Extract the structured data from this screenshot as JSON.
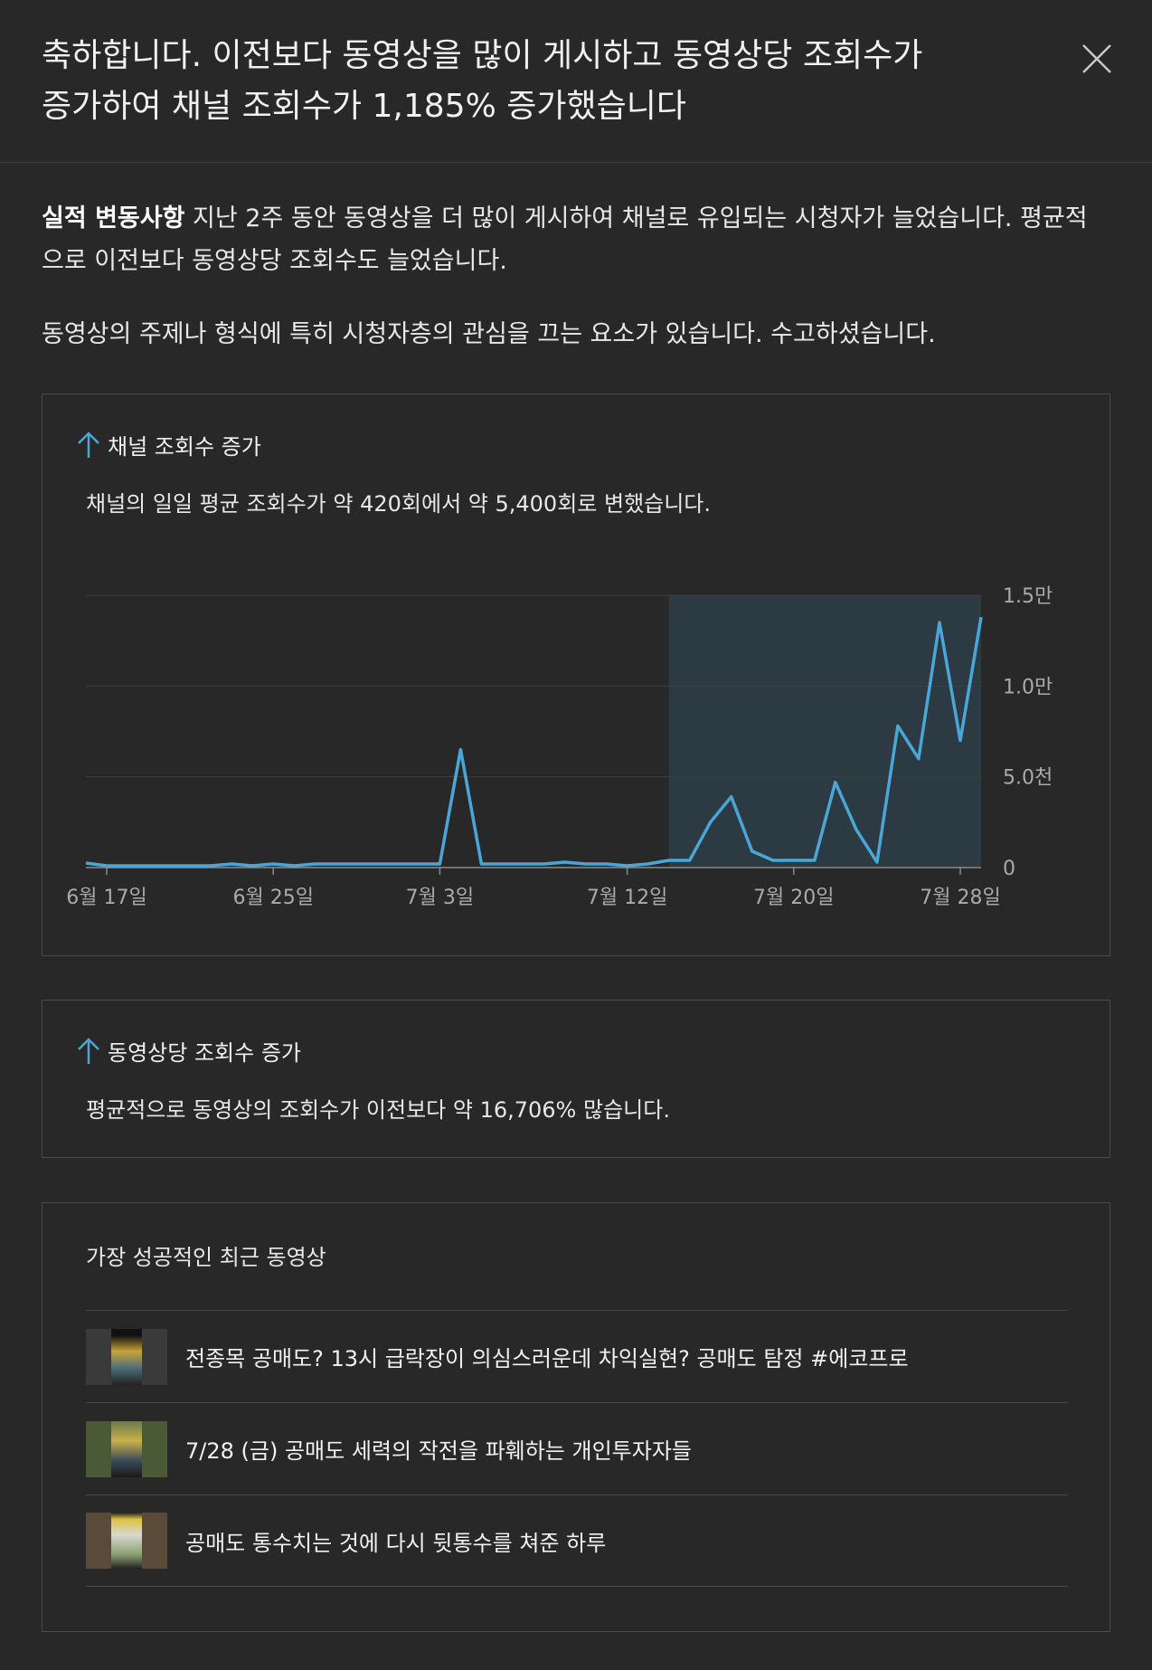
{
  "header": {
    "title_line1": "축하합니다. 이전보다 동영상을 많이 게시하고 동영상당 조회수가",
    "title_line2": "증가하여 채널 조회수가 1,185% 증가했습니다"
  },
  "summary": {
    "bold_label": "실적 변동사항",
    "text": " 지난 2주 동안 동영상을 더 많이 게시하여 채널로 유입되는 시청자가 늘었습니다. 평균적으로 이전보다 동영상당 조회수도 늘었습니다.",
    "text2": "동영상의 주제나 형식에 특히 시청자층의 관심을 끄는 요소가 있습니다. 수고하셨습니다."
  },
  "channel_views_card": {
    "heading": "채널 조회수 증가",
    "description": "채널의 일일 평균 조회수가 약 420회에서 약 5,400회로 변했습니다.",
    "icon": "arrow-up-icon"
  },
  "per_video_card": {
    "heading": "동영상당 조회수 증가",
    "description": "평균적으로 동영상의 조회수가 이전보다 약 16,706% 많습니다.",
    "icon": "arrow-up-icon"
  },
  "top_videos_card": {
    "heading": "가장 성공적인 최근 동영상",
    "videos": [
      {
        "title": "전종목 공매도? 13시 급락장이 의심스러운데 차익실현? 공매도 탐정 #에코프로"
      },
      {
        "title": "7/28 (금) 공매도 세력의 작전을 파훼하는 개인투자자들"
      },
      {
        "title": "공매도 통수치는 것에 다시 뒷통수를 쳐준 하루"
      }
    ]
  },
  "colors": {
    "background": "#282828",
    "line": "#4aa6d6",
    "highlight": "#2c3a44",
    "gridline": "#3e3e3e"
  },
  "chart_data": {
    "type": "line",
    "x": [
      "6월 16일",
      "6월 17일",
      "6월 18일",
      "6월 19일",
      "6월 20일",
      "6월 21일",
      "6월 22일",
      "6월 23일",
      "6월 24일",
      "6월 25일",
      "6월 26일",
      "6월 27일",
      "6월 28일",
      "6월 29일",
      "6월 30일",
      "7월 1일",
      "7월 2일",
      "7월 3일",
      "7월 4일",
      "7월 5일",
      "7월 6일",
      "7월 7일",
      "7월 8일",
      "7월 9일",
      "7월 10일",
      "7월 11일",
      "7월 12일",
      "7월 13일",
      "7월 14일",
      "7월 15일",
      "7월 16일",
      "7월 17일",
      "7월 18일",
      "7월 19일",
      "7월 20일",
      "7월 21일",
      "7월 22일",
      "7월 23일",
      "7월 24일",
      "7월 25일",
      "7월 26일",
      "7월 27일",
      "7월 28일",
      "7월 29일"
    ],
    "series": [
      {
        "values": [
          250,
          100,
          100,
          100,
          100,
          100,
          100,
          200,
          100,
          200,
          100,
          200,
          200,
          200,
          200,
          200,
          200,
          200,
          6500,
          200,
          200,
          200,
          200,
          300,
          200,
          200,
          100,
          200,
          400,
          400,
          2500,
          3900,
          900,
          400,
          400,
          400,
          4700,
          2100,
          300,
          7800,
          6000,
          13500,
          7000,
          13800
        ]
      }
    ],
    "xticks": [
      "6월 17일",
      "6월 25일",
      "7월 3일",
      "7월 12일",
      "7월 20일",
      "7월 28일"
    ],
    "yticks": [
      "0",
      "5.0천",
      "1.0만",
      "1.5만"
    ],
    "ylim": [
      0,
      15000
    ],
    "highlight_range": [
      "7월 14일",
      "7월 29일"
    ],
    "grid": true
  }
}
